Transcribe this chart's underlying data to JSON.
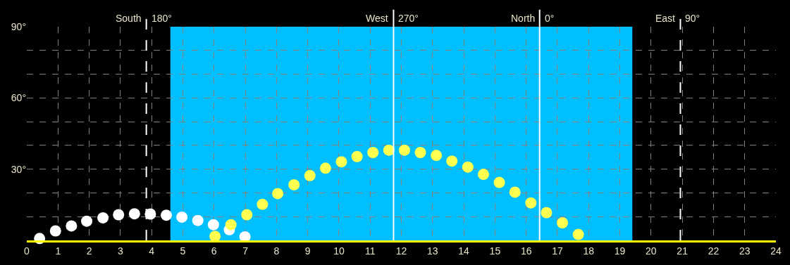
{
  "chart_data": {
    "type": "scatter",
    "xlim": [
      0,
      24
    ],
    "ylim": [
      0,
      90
    ],
    "xticks": [
      0,
      1,
      2,
      3,
      4,
      5,
      6,
      7,
      8,
      9,
      10,
      11,
      12,
      13,
      14,
      15,
      16,
      17,
      18,
      19,
      20,
      21,
      22,
      23,
      24
    ],
    "yticks": [
      {
        "value": 10,
        "label": null
      },
      {
        "value": 20,
        "label": null
      },
      {
        "value": 30,
        "label": "30°"
      },
      {
        "value": 40,
        "label": null
      },
      {
        "value": 50,
        "label": null
      },
      {
        "value": 60,
        "label": "60°"
      },
      {
        "value": 70,
        "label": null
      },
      {
        "value": 80,
        "label": null
      },
      {
        "value": 90,
        "label": "90°"
      }
    ],
    "grid": true,
    "marker": "circle",
    "series": [
      {
        "color": "#ffffff",
        "x": [
          0.41,
          0.92,
          1.43,
          1.92,
          2.44,
          2.94,
          3.45,
          3.96,
          4.47,
          4.97,
          5.48,
          5.98,
          6.49,
          6.99
        ],
        "values": [
          0.8,
          4.0,
          6.1,
          8.1,
          9.5,
          10.8,
          11.2,
          11.1,
          10.6,
          9.8,
          8.4,
          6.6,
          4.5,
          1.5
        ]
      },
      {
        "color": "#ffff50",
        "x": [
          6.03,
          6.54,
          7.05,
          7.55,
          8.04,
          8.56,
          9.07,
          9.57,
          10.08,
          10.58,
          11.09,
          11.6,
          12.1,
          12.61,
          13.12,
          13.62,
          14.13,
          14.63,
          15.14,
          15.64,
          16.15,
          16.65,
          17.16,
          17.67
        ],
        "values": [
          1.7,
          6.6,
          10.8,
          15.2,
          19.7,
          23.4,
          27.3,
          30.4,
          33.1,
          35.3,
          37.0,
          38.0,
          38.0,
          37.0,
          35.8,
          33.4,
          30.9,
          27.8,
          24.4,
          20.3,
          15.8,
          11.7,
          7.4,
          2.5
        ]
      }
    ],
    "ref_lines": [
      {
        "axis": "x",
        "value": 3.83,
        "label": "South 180°",
        "color": "#ffffff",
        "line_style": "dashed"
      },
      {
        "axis": "x",
        "value": 11.75,
        "label": "West 270°",
        "color": "#ffffff",
        "line_style": "solid"
      },
      {
        "axis": "x",
        "value": 16.43,
        "label": "North 0°",
        "color": "#ffffff",
        "line_style": "solid"
      },
      {
        "axis": "x",
        "value": 20.94,
        "label": "East 90°",
        "color": "#ffffff",
        "line_style": "dashed"
      }
    ],
    "bands": [
      {
        "axis": "x",
        "from": 4.6,
        "to": 19.4,
        "color": "#00bfff"
      }
    ]
  }
}
